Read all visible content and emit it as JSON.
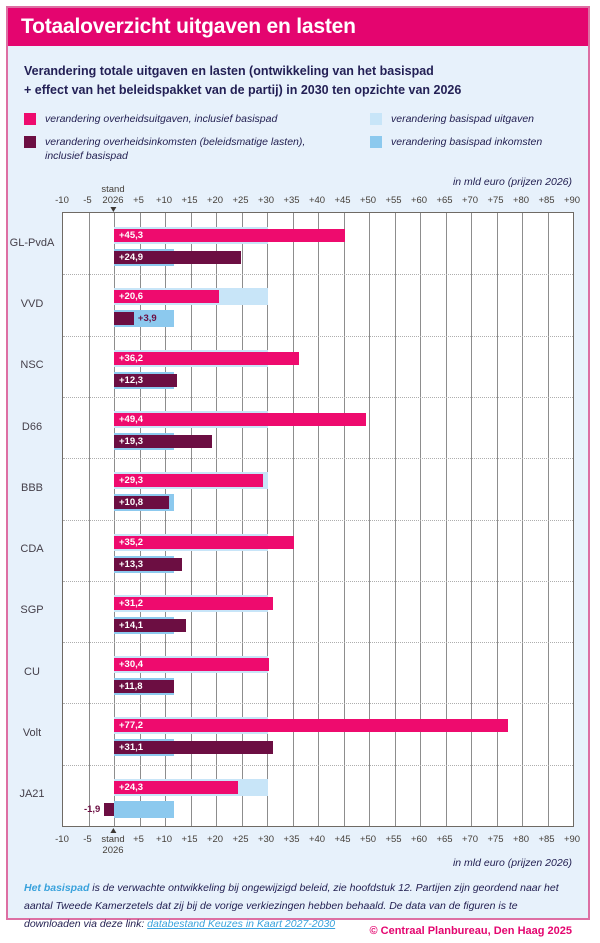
{
  "banner": {
    "title": "Totaaloverzicht uitgaven en lasten"
  },
  "subtitle": {
    "lines": [
      "Verandering totale uitgaven en lasten (ontwikkeling van het basispad",
      "+ effect van het beleidspakket van de partij) in 2030 ten opzichte van 2026"
    ]
  },
  "legend": {
    "items": [
      {
        "id": "overheidsuitgaven",
        "label": "verandering overheidsuitgaven, inclusief basispad",
        "color": "#ee0b6e"
      },
      {
        "id": "basispad-uitgaven",
        "label": "verandering basispad uitgaven",
        "color": "#c8e5f8"
      },
      {
        "id": "overheidsinkomsten",
        "label": "verandering overheidsinkomsten (beleidsmatige lasten), inclusief basispad",
        "color": "#6c0e42"
      },
      {
        "id": "basispad-inkomsten",
        "label": "verandering basispad inkomsten",
        "color": "#8cc9ee"
      }
    ]
  },
  "axis": {
    "unit_label": "in mld euro (prijzen 2026)",
    "ticks": [
      "-10",
      "-5",
      "stand 2026",
      "+5",
      "+10",
      "+15",
      "+20",
      "+25",
      "+30",
      "+35",
      "+40",
      "+45",
      "+50",
      "+55",
      "+60",
      "+65",
      "+70",
      "+75",
      "+80",
      "+85",
      "+90"
    ],
    "zero_label_line1": "stand",
    "zero_label_line2": "2026"
  },
  "chart_data": {
    "type": "bar",
    "orientation": "horizontal",
    "title": "Totaaloverzicht uitgaven en lasten",
    "xlabel": "in mld euro (prijzen 2026)",
    "xlim": [
      -10,
      90
    ],
    "tick_step": 5,
    "grid": true,
    "categories": [
      "GL-PvdA",
      "VVD",
      "NSC",
      "D66",
      "BBB",
      "CDA",
      "SGP",
      "CU",
      "Volt",
      "JA21"
    ],
    "series": [
      {
        "name": "verandering overheidsuitgaven, inclusief basispad",
        "color": "#ee0b6e",
        "values": [
          45.3,
          20.6,
          36.2,
          49.4,
          29.3,
          35.2,
          31.2,
          30.4,
          77.2,
          24.3
        ],
        "labels": [
          "+45,3",
          "+20,6",
          "+36,2",
          "+49,4",
          "+29,3",
          "+35,2",
          "+31,2",
          "+30,4",
          "+77,2",
          "+24,3"
        ]
      },
      {
        "name": "verandering overheidsinkomsten (beleidsmatige lasten), inclusief basispad",
        "color": "#6c0e42",
        "values": [
          24.9,
          3.9,
          12.3,
          19.3,
          10.8,
          13.3,
          14.1,
          11.8,
          31.1,
          -1.9
        ],
        "labels": [
          "+24,9",
          "+3,9",
          "+12,3",
          "+19,3",
          "+10,8",
          "+13,3",
          "+14,1",
          "+11,8",
          "+31,1",
          "-1,9"
        ]
      },
      {
        "name": "verandering basispad uitgaven",
        "color": "#c8e5f8",
        "values": [
          30.2,
          30.2,
          30.2,
          30.2,
          30.2,
          30.2,
          30.2,
          30.2,
          30.2,
          30.2
        ],
        "labels": [
          "",
          "",
          "",
          "",
          "",
          "",
          "",
          "",
          "",
          ""
        ]
      },
      {
        "name": "verandering basispad inkomsten",
        "color": "#8cc9ee",
        "values": [
          11.8,
          11.8,
          11.8,
          11.8,
          11.8,
          11.8,
          11.8,
          11.8,
          11.8,
          11.8
        ],
        "labels": [
          "",
          "",
          "",
          "",
          "",
          "",
          "",
          "",
          "",
          ""
        ]
      }
    ]
  },
  "footnote": {
    "term": "Het basispad",
    "body": " is de verwachte ontwikkeling bij ongewijzigd beleid, zie hoofdstuk 12. Partijen zijn geordend naar het aantal Tweede Kamerzetels dat zij bij de vorige verkiezingen hebben behaald. De data van de figuren is te downloaden via deze link: ",
    "link_text": "databestand Keuzes in Kaart 2027-2030"
  },
  "copyright": "© Centraal Planbureau, Den Haag 2025"
}
